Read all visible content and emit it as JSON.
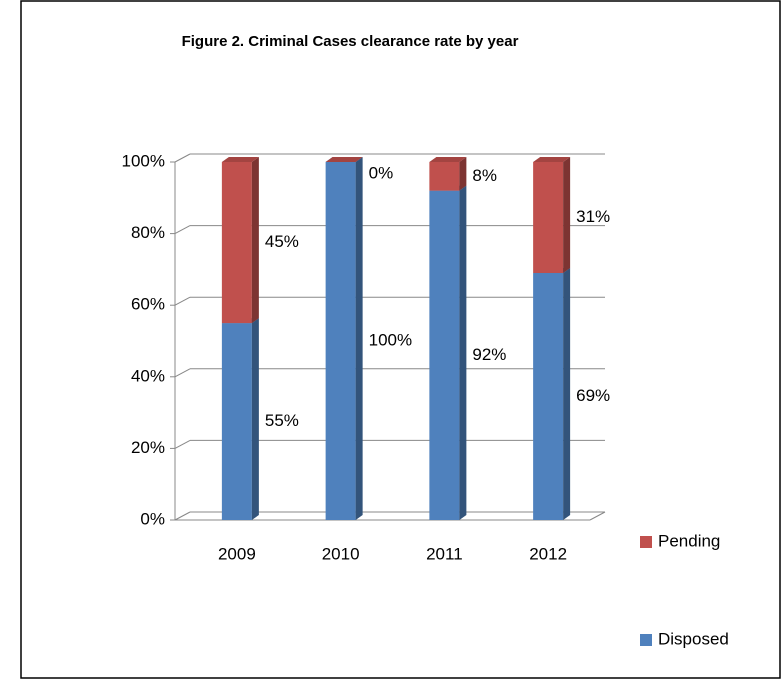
{
  "chart_data": {
    "type": "bar3d_stacked",
    "title": "Figure  2. Criminal Cases clearance rate by year",
    "categories": [
      "2009",
      "2010",
      "2011",
      "2012"
    ],
    "series": [
      {
        "name": "Disposed",
        "color": "#4f81bd",
        "values": [
          55,
          100,
          92,
          69
        ],
        "value_labels": [
          "55%",
          "100%",
          "92%",
          "69%"
        ]
      },
      {
        "name": "Pending",
        "color": "#c0504d",
        "values": [
          45,
          0,
          8,
          31
        ],
        "value_labels": [
          "45%",
          "0%",
          "8%",
          "31%"
        ]
      }
    ],
    "ylim": [
      0,
      100
    ],
    "yticks": [
      {
        "value": 0,
        "label": "0%"
      },
      {
        "value": 20,
        "label": "20%"
      },
      {
        "value": 40,
        "label": "40%"
      },
      {
        "value": 60,
        "label": "60%"
      },
      {
        "value": 80,
        "label": "80%"
      },
      {
        "value": 100,
        "label": "100%"
      }
    ],
    "grid": true,
    "legend": "right"
  }
}
